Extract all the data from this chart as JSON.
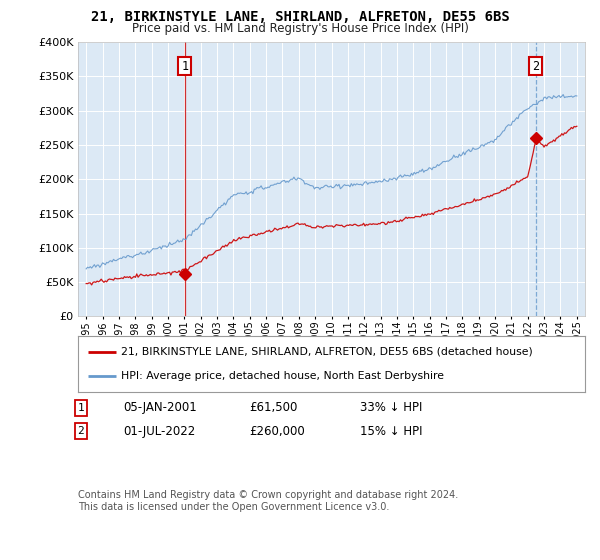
{
  "title": "21, BIRKINSTYLE LANE, SHIRLAND, ALFRETON, DE55 6BS",
  "subtitle": "Price paid vs. HM Land Registry's House Price Index (HPI)",
  "ylim": [
    0,
    400000
  ],
  "yticks": [
    0,
    50000,
    100000,
    150000,
    200000,
    250000,
    300000,
    350000,
    400000
  ],
  "plot_bg_color": "#dce9f5",
  "fig_bg_color": "#ffffff",
  "property_color": "#cc0000",
  "hpi_color": "#6699cc",
  "sale1_date": "05-JAN-2001",
  "sale1_price": 61500,
  "sale1_x": 2001.04,
  "sale1_note": "33% ↓ HPI",
  "sale2_date": "01-JUL-2022",
  "sale2_price": 260000,
  "sale2_x": 2022.5,
  "sale2_note": "15% ↓ HPI",
  "legend_property": "21, BIRKINSTYLE LANE, SHIRLAND, ALFRETON, DE55 6BS (detached house)",
  "legend_hpi": "HPI: Average price, detached house, North East Derbyshire",
  "footnote": "Contains HM Land Registry data © Crown copyright and database right 2024.\nThis data is licensed under the Open Government Licence v3.0.",
  "xstart_year": 1995,
  "xend_year": 2025
}
